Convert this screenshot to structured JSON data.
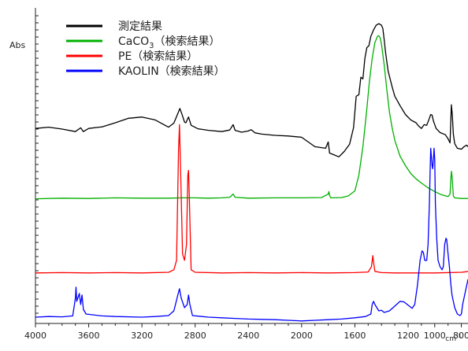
{
  "chart_data": {
    "type": "line",
    "ylabel": "Abs",
    "x_unit": "cm-1",
    "xlim": [
      4000,
      750
    ],
    "x_reversed": true,
    "x_ticks": [
      4000,
      3600,
      3200,
      2800,
      2400,
      2000,
      1600,
      1200,
      1000,
      800
    ],
    "y_axis_values_printed": false,
    "legend": {
      "position": "top-left"
    },
    "series": [
      {
        "name": "測定結果",
        "color": "#000000",
        "points": [
          [
            4000,
            0.618
          ],
          [
            3900,
            0.622
          ],
          [
            3800,
            0.616
          ],
          [
            3700,
            0.608
          ],
          [
            3660,
            0.62
          ],
          [
            3640,
            0.608
          ],
          [
            3600,
            0.618
          ],
          [
            3500,
            0.623
          ],
          [
            3400,
            0.636
          ],
          [
            3300,
            0.65
          ],
          [
            3200,
            0.654
          ],
          [
            3100,
            0.645
          ],
          [
            3000,
            0.622
          ],
          [
            2960,
            0.635
          ],
          [
            2930,
            0.665
          ],
          [
            2915,
            0.681
          ],
          [
            2900,
            0.664
          ],
          [
            2880,
            0.638
          ],
          [
            2870,
            0.636
          ],
          [
            2850,
            0.654
          ],
          [
            2830,
            0.628
          ],
          [
            2780,
            0.617
          ],
          [
            2700,
            0.612
          ],
          [
            2600,
            0.608
          ],
          [
            2540,
            0.613
          ],
          [
            2515,
            0.63
          ],
          [
            2500,
            0.612
          ],
          [
            2450,
            0.606
          ],
          [
            2400,
            0.61
          ],
          [
            2380,
            0.614
          ],
          [
            2350,
            0.604
          ],
          [
            2300,
            0.6
          ],
          [
            2200,
            0.596
          ],
          [
            2100,
            0.594
          ],
          [
            2000,
            0.59
          ],
          [
            1900,
            0.56
          ],
          [
            1820,
            0.555
          ],
          [
            1800,
            0.575
          ],
          [
            1790,
            0.54
          ],
          [
            1760,
            0.535
          ],
          [
            1720,
            0.528
          ],
          [
            1680,
            0.545
          ],
          [
            1640,
            0.568
          ],
          [
            1610,
            0.62
          ],
          [
            1590,
            0.72
          ],
          [
            1570,
            0.725
          ],
          [
            1555,
            0.78
          ],
          [
            1540,
            0.775
          ],
          [
            1525,
            0.84
          ],
          [
            1510,
            0.874
          ],
          [
            1495,
            0.88
          ],
          [
            1480,
            0.91
          ],
          [
            1460,
            0.93
          ],
          [
            1440,
            0.945
          ],
          [
            1420,
            0.95
          ],
          [
            1400,
            0.945
          ],
          [
            1390,
            0.935
          ],
          [
            1380,
            0.9
          ],
          [
            1370,
            0.86
          ],
          [
            1350,
            0.8
          ],
          [
            1320,
            0.75
          ],
          [
            1300,
            0.72
          ],
          [
            1260,
            0.69
          ],
          [
            1220,
            0.662
          ],
          [
            1180,
            0.645
          ],
          [
            1140,
            0.636
          ],
          [
            1120,
            0.625
          ],
          [
            1100,
            0.618
          ],
          [
            1080,
            0.63
          ],
          [
            1060,
            0.628
          ],
          [
            1040,
            0.65
          ],
          [
            1030,
            0.662
          ],
          [
            1020,
            0.66
          ],
          [
            1010,
            0.642
          ],
          [
            990,
            0.618
          ],
          [
            960,
            0.605
          ],
          [
            920,
            0.598
          ],
          [
            900,
            0.585
          ],
          [
            885,
            0.572
          ],
          [
            875,
            0.693
          ],
          [
            868,
            0.66
          ],
          [
            860,
            0.6
          ],
          [
            850,
            0.57
          ],
          [
            830,
            0.555
          ],
          [
            800,
            0.552
          ],
          [
            780,
            0.56
          ],
          [
            760,
            0.565
          ],
          [
            750,
            0.56
          ]
        ]
      },
      {
        "name": "CaCO3（検索結果）",
        "label_parts": [
          "CaCO",
          "3",
          "（検索結果）"
        ],
        "color": "#00b000",
        "points": [
          [
            4000,
            0.395
          ],
          [
            3800,
            0.397
          ],
          [
            3600,
            0.396
          ],
          [
            3400,
            0.398
          ],
          [
            3200,
            0.397
          ],
          [
            3000,
            0.397
          ],
          [
            2900,
            0.398
          ],
          [
            2800,
            0.398
          ],
          [
            2700,
            0.397
          ],
          [
            2600,
            0.398
          ],
          [
            2540,
            0.4
          ],
          [
            2515,
            0.41
          ],
          [
            2500,
            0.4
          ],
          [
            2400,
            0.397
          ],
          [
            2200,
            0.398
          ],
          [
            2000,
            0.398
          ],
          [
            1850,
            0.399
          ],
          [
            1800,
            0.41
          ],
          [
            1795,
            0.418
          ],
          [
            1790,
            0.405
          ],
          [
            1780,
            0.398
          ],
          [
            1700,
            0.399
          ],
          [
            1650,
            0.404
          ],
          [
            1600,
            0.42
          ],
          [
            1570,
            0.47
          ],
          [
            1540,
            0.56
          ],
          [
            1510,
            0.68
          ],
          [
            1490,
            0.77
          ],
          [
            1470,
            0.84
          ],
          [
            1450,
            0.89
          ],
          [
            1430,
            0.91
          ],
          [
            1420,
            0.912
          ],
          [
            1410,
            0.905
          ],
          [
            1400,
            0.885
          ],
          [
            1380,
            0.82
          ],
          [
            1360,
            0.74
          ],
          [
            1340,
            0.67
          ],
          [
            1320,
            0.62
          ],
          [
            1300,
            0.58
          ],
          [
            1260,
            0.53
          ],
          [
            1220,
            0.5
          ],
          [
            1180,
            0.475
          ],
          [
            1140,
            0.458
          ],
          [
            1100,
            0.445
          ],
          [
            1050,
            0.43
          ],
          [
            1000,
            0.418
          ],
          [
            950,
            0.408
          ],
          [
            900,
            0.402
          ],
          [
            885,
            0.41
          ],
          [
            878,
            0.465
          ],
          [
            874,
            0.482
          ],
          [
            868,
            0.455
          ],
          [
            860,
            0.404
          ],
          [
            850,
            0.398
          ],
          [
            800,
            0.396
          ],
          [
            750,
            0.396
          ]
        ]
      },
      {
        "name": "PE（検索結果）",
        "color": "#ff0000",
        "points": [
          [
            4000,
            0.16
          ],
          [
            3800,
            0.161
          ],
          [
            3600,
            0.16
          ],
          [
            3400,
            0.161
          ],
          [
            3200,
            0.16
          ],
          [
            3000,
            0.162
          ],
          [
            2960,
            0.17
          ],
          [
            2940,
            0.2
          ],
          [
            2925,
            0.55
          ],
          [
            2918,
            0.63
          ],
          [
            2910,
            0.5
          ],
          [
            2895,
            0.22
          ],
          [
            2880,
            0.2
          ],
          [
            2865,
            0.25
          ],
          [
            2855,
            0.47
          ],
          [
            2850,
            0.485
          ],
          [
            2845,
            0.42
          ],
          [
            2830,
            0.17
          ],
          [
            2800,
            0.162
          ],
          [
            2600,
            0.16
          ],
          [
            2400,
            0.161
          ],
          [
            2200,
            0.16
          ],
          [
            2000,
            0.161
          ],
          [
            1800,
            0.16
          ],
          [
            1600,
            0.161
          ],
          [
            1500,
            0.163
          ],
          [
            1475,
            0.18
          ],
          [
            1465,
            0.215
          ],
          [
            1460,
            0.195
          ],
          [
            1450,
            0.165
          ],
          [
            1400,
            0.161
          ],
          [
            1300,
            0.16
          ],
          [
            1200,
            0.16
          ],
          [
            1000,
            0.16
          ],
          [
            800,
            0.162
          ],
          [
            760,
            0.164
          ],
          [
            750,
            0.165
          ]
        ]
      },
      {
        "name": "KAOLIN（検索結果）",
        "color": "#0000ff",
        "points": [
          [
            4000,
            0.02
          ],
          [
            3900,
            0.022
          ],
          [
            3800,
            0.021
          ],
          [
            3720,
            0.024
          ],
          [
            3700,
            0.08
          ],
          [
            3695,
            0.115
          ],
          [
            3690,
            0.07
          ],
          [
            3670,
            0.095
          ],
          [
            3660,
            0.06
          ],
          [
            3650,
            0.09
          ],
          [
            3640,
            0.045
          ],
          [
            3620,
            0.03
          ],
          [
            3500,
            0.024
          ],
          [
            3400,
            0.022
          ],
          [
            3200,
            0.02
          ],
          [
            3100,
            0.022
          ],
          [
            3000,
            0.025
          ],
          [
            2960,
            0.04
          ],
          [
            2930,
            0.09
          ],
          [
            2918,
            0.11
          ],
          [
            2905,
            0.08
          ],
          [
            2880,
            0.05
          ],
          [
            2860,
            0.06
          ],
          [
            2850,
            0.09
          ],
          [
            2840,
            0.06
          ],
          [
            2820,
            0.025
          ],
          [
            2700,
            0.02
          ],
          [
            2600,
            0.018
          ],
          [
            2500,
            0.016
          ],
          [
            2400,
            0.014
          ],
          [
            2300,
            0.013
          ],
          [
            2200,
            0.012
          ],
          [
            2100,
            0.01
          ],
          [
            2000,
            0.008
          ],
          [
            1900,
            0.01
          ],
          [
            1800,
            0.012
          ],
          [
            1700,
            0.014
          ],
          [
            1600,
            0.018
          ],
          [
            1520,
            0.022
          ],
          [
            1480,
            0.03
          ],
          [
            1470,
            0.06
          ],
          [
            1460,
            0.07
          ],
          [
            1450,
            0.06
          ],
          [
            1420,
            0.04
          ],
          [
            1400,
            0.042
          ],
          [
            1380,
            0.035
          ],
          [
            1340,
            0.04
          ],
          [
            1300,
            0.055
          ],
          [
            1260,
            0.07
          ],
          [
            1230,
            0.068
          ],
          [
            1200,
            0.058
          ],
          [
            1170,
            0.048
          ],
          [
            1150,
            0.06
          ],
          [
            1130,
            0.12
          ],
          [
            1110,
            0.2
          ],
          [
            1095,
            0.23
          ],
          [
            1085,
            0.225
          ],
          [
            1075,
            0.2
          ],
          [
            1060,
            0.2
          ],
          [
            1050,
            0.25
          ],
          [
            1040,
            0.38
          ],
          [
            1035,
            0.48
          ],
          [
            1030,
            0.555
          ],
          [
            1025,
            0.53
          ],
          [
            1020,
            0.5
          ],
          [
            1015,
            0.49
          ],
          [
            1010,
            0.52
          ],
          [
            1005,
            0.555
          ],
          [
            1000,
            0.52
          ],
          [
            995,
            0.38
          ],
          [
            985,
            0.27
          ],
          [
            975,
            0.2
          ],
          [
            960,
            0.18
          ],
          [
            945,
            0.17
          ],
          [
            935,
            0.18
          ],
          [
            925,
            0.25
          ],
          [
            915,
            0.27
          ],
          [
            910,
            0.265
          ],
          [
            900,
            0.22
          ],
          [
            890,
            0.18
          ],
          [
            880,
            0.13
          ],
          [
            870,
            0.09
          ],
          [
            850,
            0.05
          ],
          [
            830,
            0.03
          ],
          [
            810,
            0.025
          ],
          [
            800,
            0.03
          ],
          [
            790,
            0.06
          ],
          [
            780,
            0.08
          ],
          [
            770,
            0.1
          ],
          [
            760,
            0.12
          ],
          [
            755,
            0.13
          ],
          [
            750,
            0.14
          ]
        ]
      }
    ]
  }
}
